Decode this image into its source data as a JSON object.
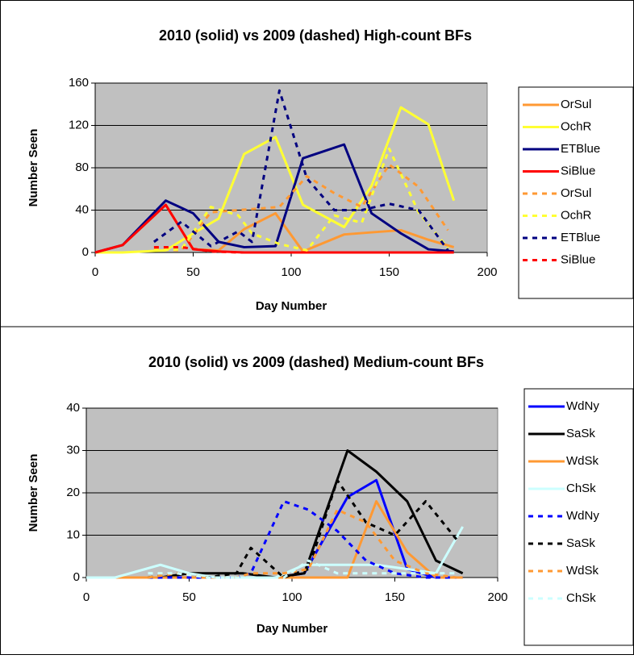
{
  "chart_data": [
    {
      "type": "line",
      "title": "2010 (solid) vs 2009 (dashed) High-count BFs",
      "x_label": "Day Number",
      "y_label": "Number Seen",
      "xlim": [
        0,
        200
      ],
      "xticks": [
        0,
        50,
        100,
        150,
        200
      ],
      "ylim": [
        0,
        160
      ],
      "yticks": [
        0,
        40,
        80,
        120,
        160
      ],
      "grid": true,
      "legend": "right",
      "series": [
        {
          "name": "OrSul",
          "color": "#ff9933",
          "dashed": false,
          "x": [
            0,
            14,
            36,
            50,
            63,
            76,
            92,
            106,
            127,
            141,
            156,
            170,
            183
          ],
          "values": [
            0,
            7,
            45,
            3,
            2,
            22,
            37,
            1,
            17,
            19,
            21,
            12,
            5
          ]
        },
        {
          "name": "OchR",
          "color": "#ffff33",
          "dashed": false,
          "x": [
            0,
            14,
            36,
            50,
            63,
            76,
            92,
            106,
            127,
            141,
            156,
            170,
            183
          ],
          "values": [
            0,
            0,
            2,
            18,
            32,
            93,
            109,
            45,
            24,
            63,
            137,
            121,
            49
          ]
        },
        {
          "name": "ETBlue",
          "color": "#000080",
          "dashed": false,
          "x": [
            0,
            14,
            36,
            50,
            63,
            76,
            92,
            106,
            127,
            141,
            156,
            170,
            183
          ],
          "values": [
            0,
            7,
            49,
            37,
            10,
            5,
            6,
            89,
            102,
            37,
            18,
            3,
            1
          ]
        },
        {
          "name": "SiBlue",
          "color": "#ff0000",
          "dashed": false,
          "x": [
            0,
            14,
            36,
            50,
            63,
            76,
            92,
            106,
            127,
            141,
            156,
            170,
            183
          ],
          "values": [
            0,
            7,
            45,
            3,
            1,
            0,
            0,
            0,
            0,
            0,
            0,
            0,
            0
          ]
        },
        {
          "name": "OrSul",
          "color": "#ff9933",
          "dashed": true,
          "x": [
            30,
            44,
            59,
            73,
            80,
            94,
            108,
            122,
            136,
            150,
            165,
            180
          ],
          "values": [
            3,
            2,
            38,
            40,
            41,
            43,
            72,
            56,
            43,
            83,
            62,
            21
          ]
        },
        {
          "name": "OchR",
          "color": "#ffff33",
          "dashed": true,
          "x": [
            30,
            44,
            59,
            73,
            80,
            94,
            108,
            122,
            136,
            150,
            165,
            180
          ],
          "values": [
            2,
            3,
            43,
            35,
            18,
            8,
            2,
            35,
            28,
            98,
            38,
            4
          ]
        },
        {
          "name": "ETBlue",
          "color": "#000080",
          "dashed": true,
          "x": [
            30,
            44,
            59,
            73,
            80,
            94,
            108,
            122,
            136,
            150,
            165,
            180
          ],
          "values": [
            10,
            29,
            6,
            20,
            10,
            153,
            70,
            40,
            40,
            46,
            40,
            2
          ]
        },
        {
          "name": "SiBlue",
          "color": "#ff0000",
          "dashed": true,
          "x": [
            30,
            44,
            59,
            73,
            80,
            94,
            108,
            122,
            136,
            150,
            165,
            180
          ],
          "values": [
            5,
            5,
            1,
            0,
            0,
            0,
            0,
            0,
            0,
            0,
            0,
            0
          ]
        }
      ]
    },
    {
      "type": "line",
      "title": "2010 (solid) vs 2009 (dashed) Medium-count BFs",
      "x_label": "Day Number",
      "y_label": "Number Seen",
      "xlim": [
        0,
        200
      ],
      "xticks": [
        0,
        50,
        100,
        150,
        200
      ],
      "ylim": [
        0,
        40
      ],
      "yticks": [
        0,
        10,
        20,
        30,
        40
      ],
      "grid": true,
      "legend": "right",
      "series": [
        {
          "name": "WdNy",
          "color": "#0000ff",
          "dashed": false,
          "x": [
            0,
            14,
            36,
            50,
            63,
            76,
            92,
            106,
            127,
            141,
            156,
            170,
            183
          ],
          "values": [
            0,
            0,
            0,
            0,
            0,
            0,
            0,
            1,
            19,
            23,
            2,
            0,
            0
          ]
        },
        {
          "name": "SaSk",
          "color": "#000000",
          "dashed": false,
          "x": [
            0,
            14,
            36,
            50,
            63,
            76,
            92,
            106,
            127,
            141,
            156,
            170,
            183
          ],
          "values": [
            0,
            0,
            0,
            1,
            1,
            1,
            0,
            1,
            30,
            25,
            18,
            4,
            1
          ]
        },
        {
          "name": "WdSk",
          "color": "#ff9933",
          "dashed": false,
          "x": [
            0,
            14,
            36,
            50,
            63,
            76,
            92,
            106,
            127,
            141,
            156,
            170,
            183
          ],
          "values": [
            0,
            0,
            0,
            0,
            0,
            0,
            0,
            0,
            0,
            18,
            6,
            0,
            0
          ]
        },
        {
          "name": "ChSk",
          "color": "#ccffff",
          "dashed": false,
          "x": [
            0,
            14,
            36,
            50,
            63,
            76,
            92,
            106,
            127,
            141,
            156,
            170,
            183
          ],
          "values": [
            0,
            0,
            3,
            1,
            0,
            0,
            0,
            3,
            3,
            3,
            2,
            1,
            12
          ]
        },
        {
          "name": "WdNy",
          "color": "#0000ff",
          "dashed": true,
          "x": [
            30,
            44,
            59,
            73,
            80,
            96,
            108,
            122,
            136,
            150,
            165,
            180
          ],
          "values": [
            0,
            0,
            0,
            0,
            1,
            18,
            16,
            11,
            4,
            1,
            0,
            0
          ]
        },
        {
          "name": "SaSk",
          "color": "#000000",
          "dashed": true,
          "x": [
            30,
            44,
            59,
            73,
            80,
            96,
            108,
            122,
            136,
            150,
            165,
            180
          ],
          "values": [
            0,
            1,
            0,
            1,
            7,
            0,
            2,
            23,
            13,
            10,
            18,
            9
          ]
        },
        {
          "name": "WdSk",
          "color": "#ff9933",
          "dashed": true,
          "x": [
            30,
            44,
            59,
            73,
            80,
            96,
            108,
            122,
            136,
            150,
            165,
            180
          ],
          "values": [
            0,
            1,
            0,
            0,
            1,
            1,
            2,
            16,
            13,
            4,
            1,
            0
          ]
        },
        {
          "name": "ChSk",
          "color": "#ccffff",
          "dashed": true,
          "x": [
            30,
            44,
            59,
            73,
            80,
            96,
            108,
            122,
            136,
            150,
            165,
            180
          ],
          "values": [
            1,
            1,
            0,
            0,
            0,
            0,
            4,
            1,
            1,
            1,
            1,
            1
          ]
        }
      ]
    }
  ]
}
